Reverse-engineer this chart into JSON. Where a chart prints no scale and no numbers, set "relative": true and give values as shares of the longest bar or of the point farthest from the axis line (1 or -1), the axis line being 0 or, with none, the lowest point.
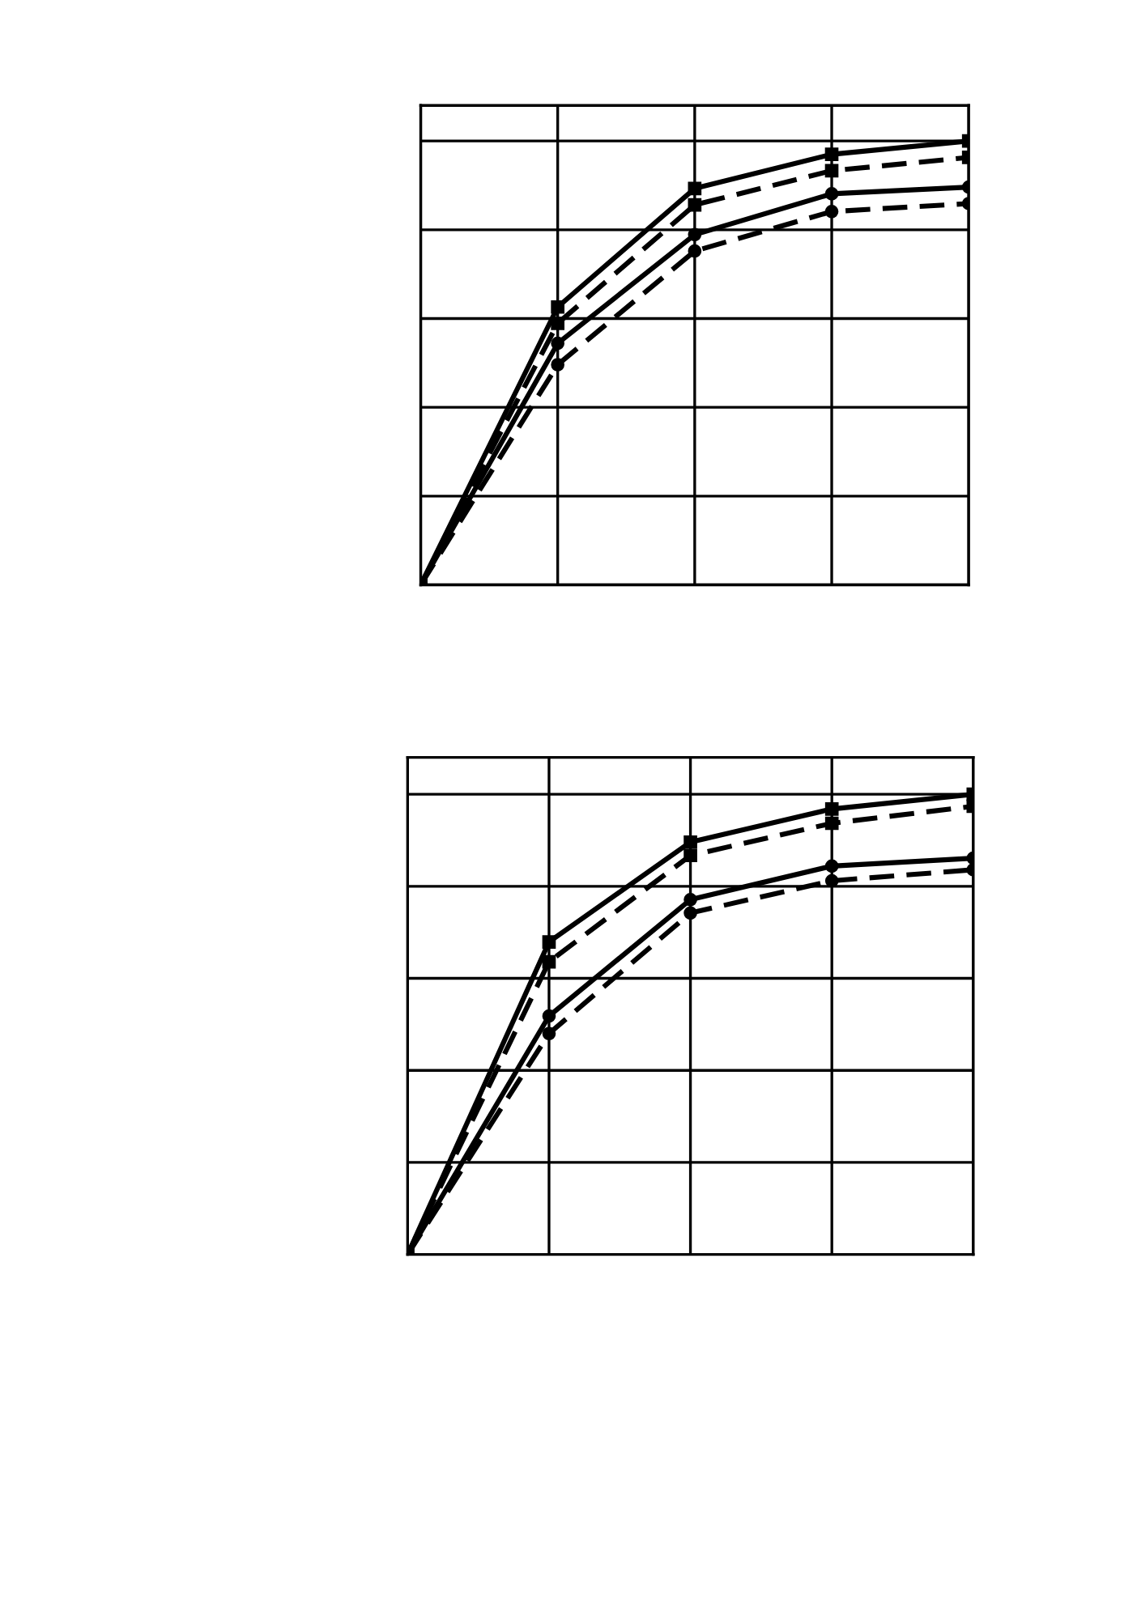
{
  "chart_data": [
    {
      "type": "line",
      "relative": true,
      "grid": true,
      "tick_labels": false,
      "categories": [
        null,
        null,
        null,
        null,
        null
      ],
      "series": [
        {
          "color": "#000000",
          "marker": "square",
          "line_style": "solid",
          "values": [
            0,
            0.626,
            0.893,
            0.97,
            1
          ]
        },
        {
          "color": "#000000",
          "marker": "square",
          "line_style": "dashed",
          "values": [
            0,
            0.589,
            0.856,
            0.933,
            0.963
          ]
        },
        {
          "color": "#000000",
          "marker": "circle",
          "line_style": "solid",
          "values": [
            0,
            0.544,
            0.789,
            0.881,
            0.896
          ]
        },
        {
          "color": "#000000",
          "marker": "circle",
          "line_style": "dashed",
          "values": [
            0,
            0.496,
            0.752,
            0.841,
            0.859
          ]
        }
      ]
    },
    {
      "type": "line",
      "relative": true,
      "grid": true,
      "tick_labels": false,
      "categories": [
        null,
        null,
        null,
        null,
        null
      ],
      "series": [
        {
          "color": "#000000",
          "marker": "square",
          "line_style": "solid",
          "values": [
            0,
            0.679,
            0.896,
            0.968,
            1
          ]
        },
        {
          "color": "#000000",
          "marker": "square",
          "line_style": "dashed",
          "values": [
            0,
            0.636,
            0.867,
            0.937,
            0.974
          ]
        },
        {
          "color": "#000000",
          "marker": "circle",
          "line_style": "solid",
          "values": [
            0,
            0.518,
            0.771,
            0.844,
            0.861
          ]
        },
        {
          "color": "#000000",
          "marker": "circle",
          "line_style": "dashed",
          "values": [
            0,
            0.48,
            0.742,
            0.812,
            0.836
          ]
        }
      ]
    }
  ]
}
